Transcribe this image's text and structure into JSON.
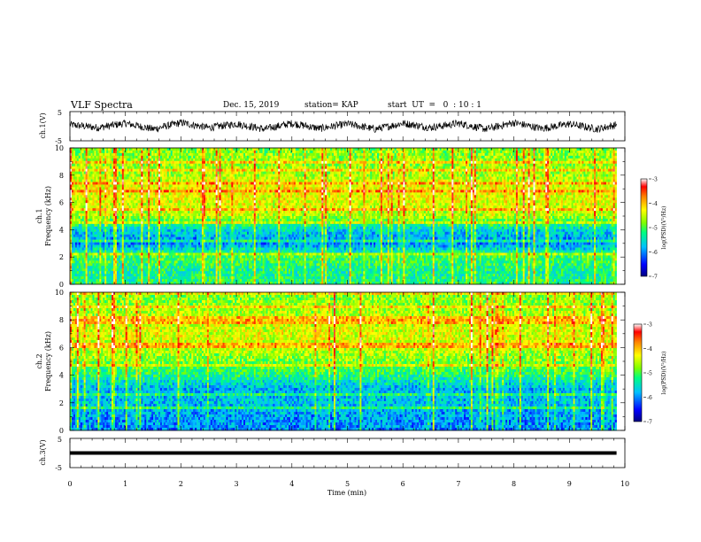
{
  "header": {
    "title": "VLF  Spectra",
    "date": "Dec. 15, 2019",
    "station": "station= KAP",
    "start": "start  UT  =   0  : 10 : 1"
  },
  "colorbar": {
    "label": "log(PSD)(V²/Hz)",
    "ticks": [
      "-3",
      "-4",
      "-5",
      "-6",
      "-7"
    ]
  },
  "colors": {
    "background": "#ffffff",
    "trace": "#000000",
    "colormap": [
      "#000080",
      "#0000ff",
      "#00c0ff",
      "#00ff80",
      "#80ff00",
      "#ffff00",
      "#ff8000",
      "#ff0000",
      "#ffffff"
    ]
  },
  "chart_data": [
    {
      "type": "line",
      "panel": "ch1-waveform",
      "ylabel": "ch.1(V)",
      "ylim": [
        -5,
        5
      ],
      "y_ticks": [
        "5",
        "-5"
      ],
      "xlim": [
        0,
        10
      ],
      "x_end": 9.85,
      "envelope": {
        "x": [
          0,
          0.5,
          1,
          1.5,
          2,
          2.5,
          3,
          3.5,
          4,
          4.5,
          5,
          5.5,
          6,
          6.5,
          7,
          7.5,
          8,
          8.5,
          9,
          9.5,
          9.85
        ],
        "y": [
          0.5,
          -0.5,
          1.0,
          -1.0,
          1.2,
          -0.5,
          0.8,
          -1.0,
          1.0,
          -0.8,
          0.8,
          -1.0,
          1.0,
          -0.5,
          1.0,
          -1.0,
          1.2,
          -0.8,
          0.8,
          -1.0,
          0.5
        ]
      }
    },
    {
      "type": "heatmap",
      "panel": "ch1-spectrogram",
      "ylabel_channel": "ch.1",
      "ylabel": "Frequency  (kHz)",
      "ylim": [
        0,
        10
      ],
      "y_ticks": [
        "0",
        "2",
        "4",
        "6",
        "8",
        "10"
      ],
      "xlim": [
        0,
        10
      ],
      "x_end": 9.85,
      "zlim": [
        -7,
        -3
      ],
      "frequency_profile_khz": [
        0,
        1,
        2,
        3,
        4,
        5,
        6,
        7,
        8,
        9,
        10
      ],
      "log_psd_profile": [
        -5.2,
        -5.3,
        -5.0,
        -6.0,
        -5.6,
        -4.6,
        -4.4,
        -4.3,
        -4.6,
        -4.7,
        -4.8
      ]
    },
    {
      "type": "heatmap",
      "panel": "ch2-spectrogram",
      "ylabel_channel": "ch.2",
      "ylabel": "Frequency  (kHz)",
      "ylim": [
        0,
        10
      ],
      "y_ticks": [
        "0",
        "2",
        "4",
        "6",
        "8",
        "10"
      ],
      "xlim": [
        0,
        10
      ],
      "x_end": 9.85,
      "zlim": [
        -7,
        -3
      ],
      "frequency_profile_khz": [
        0,
        1,
        2,
        3,
        4,
        5,
        6,
        7,
        8,
        9,
        10
      ],
      "log_psd_profile": [
        -6.0,
        -5.9,
        -5.7,
        -5.8,
        -5.2,
        -4.8,
        -4.5,
        -4.4,
        -4.5,
        -4.7,
        -4.8
      ]
    },
    {
      "type": "line",
      "panel": "ch3-waveform",
      "ylabel": "ch.3(V)",
      "ylim": [
        -5,
        5
      ],
      "y_ticks": [
        "5",
        "-5"
      ],
      "xlim": [
        0,
        10
      ],
      "x": [
        0,
        9.85
      ],
      "y": [
        0,
        0
      ],
      "xlabel": "Time  (min)",
      "x_ticks": [
        "0",
        "1",
        "2",
        "3",
        "4",
        "5",
        "6",
        "7",
        "8",
        "9",
        "10"
      ]
    }
  ]
}
